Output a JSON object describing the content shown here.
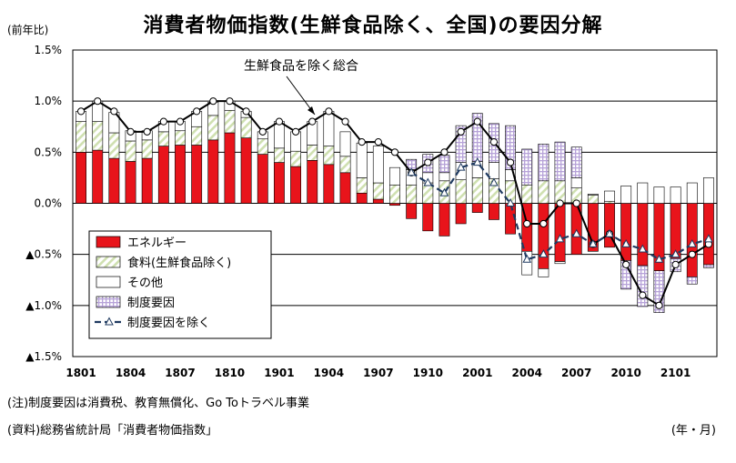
{
  "title": "消費者物価指数(生鮮食品除く、全国)の要因分解",
  "y_unit": "(前年比)",
  "x_unit": "(年・月)",
  "note": "(注)制度要因は消費税、教育無償化、Go Toトラベル事業",
  "source": "(資料)総務省統計局「消費者物価指数」",
  "annotation": "生鮮食品を除く総合",
  "colors": {
    "energy": "#e8141b",
    "food": "#cfe0b0",
    "other": "#ffffff",
    "policy": "#b6a2d8",
    "line": "#1f3a60"
  },
  "chart_data": {
    "type": "bar",
    "stacked": true,
    "ylim": [
      -1.5,
      1.5
    ],
    "y_ticks": [
      "▲1.5%",
      "▲1.0%",
      "▲0.5%",
      "0.0%",
      "0.5%",
      "1.0%",
      "1.5%"
    ],
    "x_tick_labels": [
      "1801",
      "1804",
      "1807",
      "1810",
      "1901",
      "1904",
      "1907",
      "1910",
      "2001",
      "2004",
      "2007",
      "2010",
      "2101"
    ],
    "categories": [
      "1801",
      "1802",
      "1803",
      "1804",
      "1805",
      "1806",
      "1807",
      "1808",
      "1809",
      "1810",
      "1811",
      "1812",
      "1901",
      "1902",
      "1903",
      "1904",
      "1905",
      "1906",
      "1907",
      "1908",
      "1909",
      "1910",
      "1911",
      "1912",
      "2001",
      "2002",
      "2003",
      "2004",
      "2005",
      "2006",
      "2007",
      "2008",
      "2009",
      "2010",
      "2011",
      "2012",
      "2101",
      "2102",
      "2103"
    ],
    "legend": [
      {
        "key": "energy",
        "label": "エネルギー"
      },
      {
        "key": "food",
        "label": "食料(生鮮食品除く)"
      },
      {
        "key": "other",
        "label": "その他"
      },
      {
        "key": "policy",
        "label": "制度要因"
      },
      {
        "key": "excl",
        "label": "制度要因を除く"
      }
    ],
    "series": [
      {
        "name": "エネルギー",
        "values": [
          0.5,
          0.52,
          0.44,
          0.41,
          0.44,
          0.56,
          0.57,
          0.57,
          0.62,
          0.69,
          0.64,
          0.48,
          0.4,
          0.36,
          0.42,
          0.38,
          0.3,
          0.1,
          0.04,
          -0.02,
          -0.15,
          -0.27,
          -0.32,
          -0.2,
          -0.09,
          -0.16,
          -0.3,
          -0.47,
          -0.64,
          -0.57,
          -0.5,
          -0.47,
          -0.43,
          -0.56,
          -0.61,
          -0.66,
          -0.54,
          -0.72,
          -0.6
        ]
      },
      {
        "name": "食料(生鮮食品除く)",
        "values": [
          0.3,
          0.28,
          0.25,
          0.2,
          0.18,
          0.14,
          0.14,
          0.18,
          0.24,
          0.22,
          0.2,
          0.15,
          0.14,
          0.15,
          0.15,
          0.18,
          0.16,
          0.15,
          0.16,
          0.18,
          0.18,
          0.2,
          0.22,
          0.23,
          0.25,
          0.24,
          0.22,
          0.18,
          0.22,
          0.22,
          0.15,
          0.08,
          0.02,
          0.0,
          0.0,
          0.0,
          0.0,
          0.0,
          0.0
        ]
      },
      {
        "name": "その他",
        "values": [
          0.1,
          0.2,
          0.2,
          0.1,
          0.09,
          0.1,
          0.09,
          0.15,
          0.13,
          0.09,
          0.06,
          0.07,
          0.26,
          0.19,
          0.23,
          0.34,
          0.24,
          0.34,
          0.36,
          0.17,
          0.15,
          0.1,
          0.08,
          0.17,
          0.16,
          0.16,
          0.11,
          -0.23,
          -0.08,
          -0.02,
          0.1,
          0.01,
          0.1,
          0.17,
          0.2,
          0.16,
          0.16,
          0.2,
          0.25
        ]
      },
      {
        "name": "制度要因",
        "values": [
          0,
          0,
          0,
          0,
          0,
          0,
          0,
          0,
          0,
          0,
          0,
          0,
          0,
          0,
          0,
          0,
          0,
          0,
          0,
          0,
          0.1,
          0.18,
          0.17,
          0.36,
          0.47,
          0.38,
          0.43,
          0.35,
          0.36,
          0.38,
          0.3,
          0,
          0,
          -0.28,
          -0.4,
          -0.41,
          -0.13,
          -0.07,
          -0.03
        ]
      }
    ],
    "lines": [
      {
        "name": "生鮮食品を除く総合",
        "values": [
          0.9,
          1.0,
          0.9,
          0.7,
          0.7,
          0.8,
          0.8,
          0.9,
          1.0,
          1.0,
          0.9,
          0.7,
          0.8,
          0.7,
          0.8,
          0.9,
          0.8,
          0.6,
          0.6,
          0.5,
          0.3,
          0.4,
          0.5,
          0.7,
          0.8,
          0.6,
          0.4,
          -0.2,
          -0.2,
          0.0,
          0.0,
          -0.4,
          -0.3,
          -0.6,
          -0.9,
          -1.0,
          -0.6,
          -0.5,
          -0.4
        ]
      },
      {
        "name": "制度要因を除く",
        "values": [
          null,
          null,
          null,
          null,
          null,
          null,
          null,
          null,
          null,
          null,
          null,
          null,
          null,
          null,
          null,
          null,
          null,
          null,
          null,
          null,
          0.3,
          0.2,
          0.1,
          0.35,
          0.4,
          0.2,
          0.0,
          -0.55,
          -0.5,
          -0.35,
          -0.3,
          -0.4,
          -0.3,
          -0.4,
          -0.45,
          -0.55,
          -0.5,
          -0.4,
          -0.35
        ]
      }
    ]
  }
}
